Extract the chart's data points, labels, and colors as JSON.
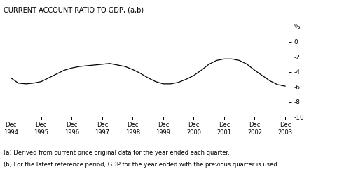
{
  "title": "CURRENT ACCOUNT RATIO TO GDP, (a,b)",
  "ylabel": "%",
  "ylim": [
    -10,
    0.5
  ],
  "yticks": [
    0,
    -2,
    -4,
    -6,
    -8,
    -10
  ],
  "ytick_labels": [
    "0",
    "-2",
    "-4",
    "-6",
    "-8",
    "-10"
  ],
  "footnote1": "(a) Derived from current price original data for the year ended each quarter.",
  "footnote2": "(b) For the latest reference period, GDP for the year ended with the previous quarter is used.",
  "line_color": "#000000",
  "background_color": "#ffffff",
  "x_labels": [
    "Dec\n1994",
    "Dec\n1995",
    "Dec\n1996",
    "Dec\n1997",
    "Dec\n1998",
    "Dec\n1999",
    "Dec\n2000",
    "Dec\n2001",
    "Dec\n2002",
    "Dec\n2003"
  ],
  "x_positions": [
    0,
    4,
    8,
    12,
    16,
    20,
    24,
    28,
    32,
    36
  ],
  "data_x": [
    0,
    1,
    2,
    3,
    4,
    5,
    6,
    7,
    8,
    9,
    10,
    11,
    12,
    13,
    14,
    15,
    16,
    17,
    18,
    19,
    20,
    21,
    22,
    23,
    24,
    25,
    26,
    27,
    28,
    29,
    30,
    31,
    32,
    33,
    34,
    35,
    36
  ],
  "data_y": [
    -4.8,
    -5.5,
    -5.6,
    -5.5,
    -5.3,
    -4.8,
    -4.3,
    -3.8,
    -3.5,
    -3.3,
    -3.2,
    -3.1,
    -3.0,
    -2.9,
    -3.1,
    -3.3,
    -3.7,
    -4.2,
    -4.8,
    -5.3,
    -5.6,
    -5.6,
    -5.4,
    -5.0,
    -4.5,
    -3.8,
    -3.0,
    -2.5,
    -2.3,
    -2.3,
    -2.5,
    -3.0,
    -3.8,
    -4.5,
    -5.2,
    -5.7,
    -5.9
  ]
}
